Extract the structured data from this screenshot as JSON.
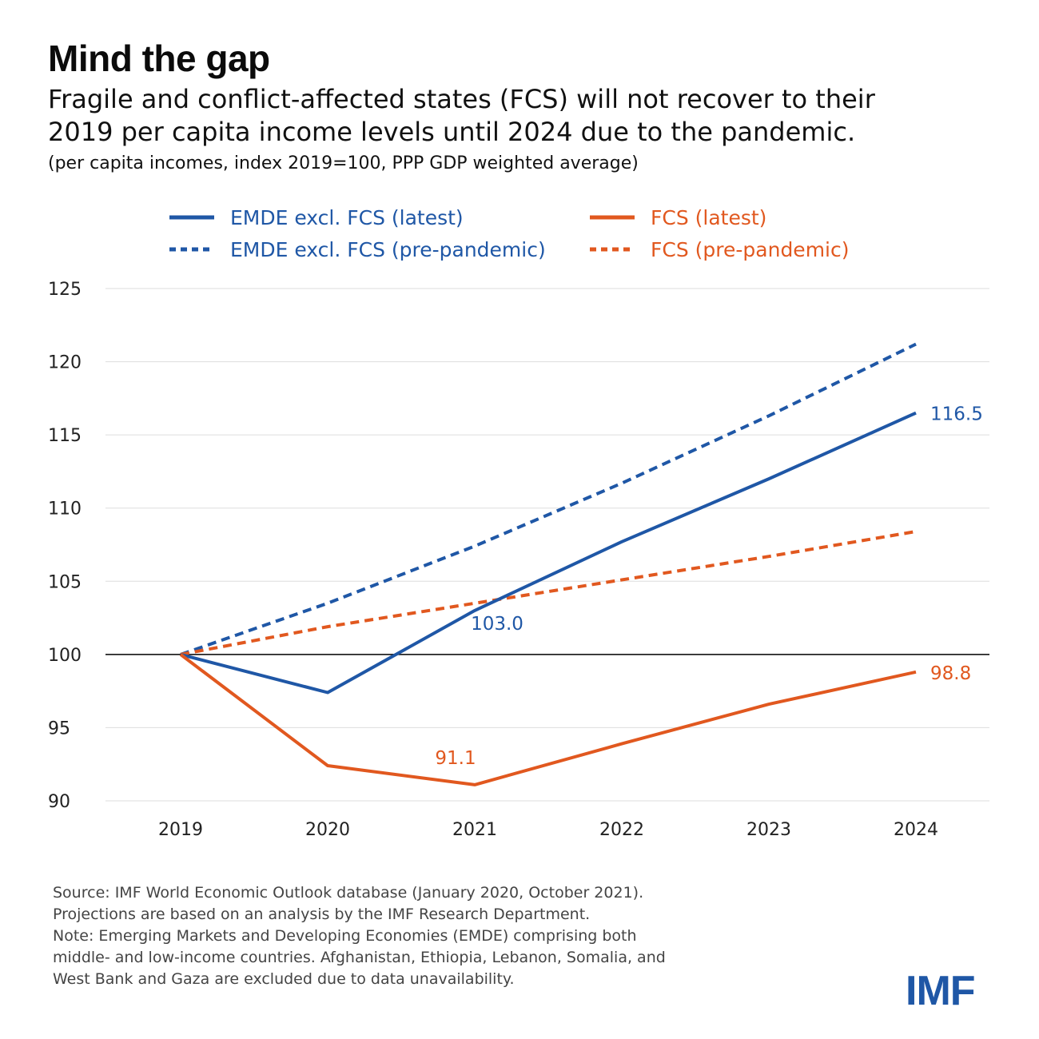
{
  "header": {
    "title": "Mind the gap",
    "subtitle_line1": "Fragile and conflict-affected states (FCS) will not recover to their",
    "subtitle_line2": "2019 per capita income levels until 2024 due to the pandemic.",
    "units": "(per capita incomes, index 2019=100, PPP GDP weighted average)"
  },
  "colors": {
    "blue": "#1f57a6",
    "orange": "#e1581f",
    "grid": "#dddddd",
    "axis_text": "#222222"
  },
  "chart_data": {
    "type": "line",
    "x": [
      "2019",
      "2020",
      "2021",
      "2022",
      "2023",
      "2024"
    ],
    "ylim": [
      90,
      125
    ],
    "yticks": [
      90,
      95,
      100,
      105,
      110,
      115,
      120,
      125
    ],
    "grid": true,
    "baseline": 100,
    "legend_position": "top",
    "series": [
      {
        "name": "EMDE excl. FCS (latest)",
        "color": "blue",
        "dashed": false,
        "values": [
          100,
          97.4,
          103.0,
          107.7,
          112.0,
          116.5
        ]
      },
      {
        "name": "FCS (latest)",
        "color": "orange",
        "dashed": false,
        "values": [
          100,
          92.4,
          91.1,
          93.9,
          96.6,
          98.8
        ]
      },
      {
        "name": "EMDE excl. FCS (pre-pandemic)",
        "color": "blue",
        "dashed": true,
        "values": [
          100,
          103.5,
          107.4,
          111.7,
          116.3,
          121.2
        ]
      },
      {
        "name": "FCS (pre-pandemic)",
        "color": "orange",
        "dashed": true,
        "values": [
          100,
          101.9,
          103.5,
          105.1,
          106.7,
          108.4
        ]
      }
    ],
    "annotations": [
      {
        "text": "116.5",
        "series": 0,
        "index": 5,
        "value": 116.5
      },
      {
        "text": "103.0",
        "series": 0,
        "index": 2,
        "value": 103.0
      },
      {
        "text": "98.8",
        "series": 1,
        "index": 5,
        "value": 98.8
      },
      {
        "text": "91.1",
        "series": 1,
        "index": 2,
        "value": 91.1
      }
    ]
  },
  "footnote": {
    "line1": "Source: IMF World Economic Outlook database (January 2020, October 2021).",
    "line2": "Projections are based on an analysis by the IMF Research Department.",
    "line3": "Note: Emerging Markets and Developing Economies (EMDE) comprising both",
    "line4": "middle- and low-income countries. Afghanistan, Ethiopia, Lebanon, Somalia, and",
    "line5": "West Bank and Gaza are excluded due to data unavailability."
  },
  "logo": {
    "text": "IMF"
  }
}
